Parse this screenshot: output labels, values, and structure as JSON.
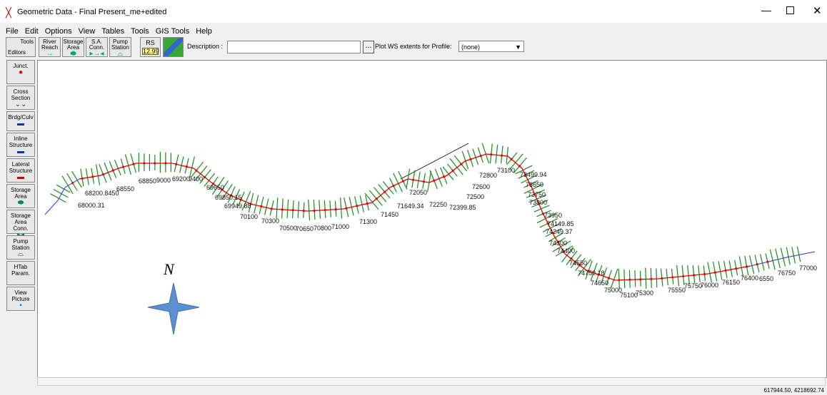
{
  "window": {
    "title": "Geometric Data - Final Present_me+edited"
  },
  "menu": [
    "File",
    "Edit",
    "Options",
    "View",
    "Tables",
    "Tools",
    "GIS Tools",
    "Help"
  ],
  "toolbar": {
    "tools": "Tools",
    "editors": "Editors",
    "buttons": [
      [
        "River",
        "Reach"
      ],
      [
        "Storage",
        "Area"
      ],
      [
        "S.A.",
        "Conn."
      ],
      [
        "Pump",
        "Station"
      ]
    ],
    "rs": "RS",
    "rs_value": "12.99",
    "description_label": "Description :",
    "plot_ws_label": "Plot WS extents for Profile:",
    "profile": "(none)"
  },
  "left_panel": [
    [
      "Junct."
    ],
    [
      "Cross",
      "Section"
    ],
    [
      "Brdg/Culv"
    ],
    [
      "Inline",
      "Structure"
    ],
    [
      "Lateral",
      "Structure"
    ],
    [
      "Storage",
      "Area"
    ],
    [
      "Storage",
      "Area Conn."
    ],
    [
      "Pump",
      "Station"
    ],
    [
      "HTab",
      "Param."
    ],
    [
      "View",
      "Picture"
    ]
  ],
  "map": {
    "north": "N",
    "stations": [
      "68000.31",
      "68200.8450",
      "68550",
      "68850",
      "9000",
      "69200",
      "9400",
      "69650",
      "69850.15",
      "69949.88",
      "70100",
      "70300",
      "70500",
      "70650",
      "70800",
      "71000",
      "71300",
      "71450",
      "71649.34",
      "72050",
      "72250",
      "72399.85",
      "72500",
      "72600",
      "72800",
      "73100",
      "73499.94",
      "73650",
      "73750",
      "73800",
      "73950",
      "74149.85",
      "74249.37",
      "74300",
      "74400",
      "74550",
      "74750.18",
      "74650",
      "75000",
      "75100",
      "75300",
      "75550",
      "75750",
      "76000",
      "76150",
      "76400",
      "6550",
      "76750",
      "77000"
    ]
  },
  "status": "617944.50, 4218692.74"
}
